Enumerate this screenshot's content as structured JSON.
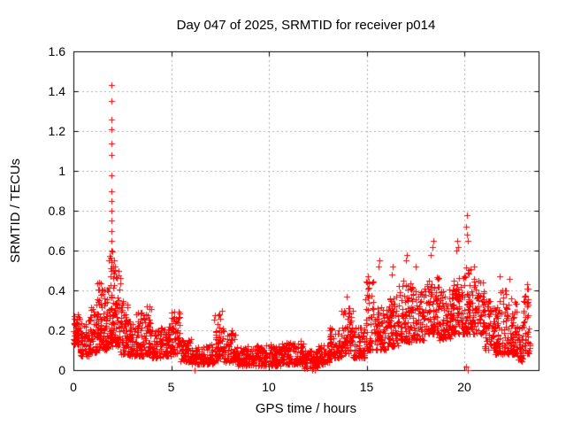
{
  "figure": {
    "background": "#ffffff",
    "border_color": "#000000"
  },
  "chart_data": {
    "type": "scatter",
    "title": "Day 047 of 2025, SRMTID for receiver p014",
    "xlabel": "GPS time / hours",
    "ylabel": "SRMTID / TECUs",
    "xlim": [
      0,
      23.8
    ],
    "ylim": [
      0,
      1.6
    ],
    "xtick_values": [
      0,
      5,
      10,
      15,
      20
    ],
    "xtick_labels": [
      "0",
      "5",
      "10",
      "15",
      "20"
    ],
    "ytick_values": [
      0,
      0.2,
      0.4,
      0.6,
      0.8,
      1.0,
      1.2,
      1.4,
      1.6
    ],
    "ytick_labels": [
      "0",
      "0.2",
      "0.4",
      "0.6",
      "0.8",
      "1",
      "1.2",
      "1.4",
      "1.6"
    ],
    "grid": true,
    "grid_style": "dashed",
    "grid_color": "#b0b0b0",
    "legend": "none",
    "marker": "plus",
    "marker_size": 7,
    "marker_color": "#ff0000",
    "series_name": "SRMTID",
    "seed": 47,
    "sample_step_hours": 0.008333,
    "band_segments_comment": "dense scatter band envelope: [t_start, t_end, value_min, value_max, n_points]",
    "band_segments": [
      [
        0.0,
        0.3,
        0.13,
        0.28,
        55
      ],
      [
        0.3,
        0.8,
        0.07,
        0.26,
        60
      ],
      [
        0.8,
        1.2,
        0.09,
        0.33,
        55
      ],
      [
        1.2,
        1.5,
        0.1,
        0.45,
        50
      ],
      [
        1.5,
        1.8,
        0.1,
        0.42,
        45
      ],
      [
        1.8,
        2.05,
        0.12,
        0.6,
        50
      ],
      [
        2.05,
        2.4,
        0.12,
        0.52,
        55
      ],
      [
        2.4,
        2.8,
        0.08,
        0.35,
        55
      ],
      [
        2.8,
        3.2,
        0.07,
        0.26,
        50
      ],
      [
        3.2,
        3.6,
        0.07,
        0.3,
        50
      ],
      [
        3.6,
        4.0,
        0.08,
        0.33,
        55
      ],
      [
        4.0,
        4.5,
        0.06,
        0.2,
        55
      ],
      [
        4.5,
        5.0,
        0.07,
        0.22,
        55
      ],
      [
        5.0,
        5.45,
        0.08,
        0.3,
        50
      ],
      [
        5.45,
        6.0,
        0.04,
        0.16,
        55
      ],
      [
        6.0,
        6.7,
        0.03,
        0.12,
        65
      ],
      [
        6.7,
        7.2,
        0.03,
        0.13,
        50
      ],
      [
        7.2,
        7.65,
        0.05,
        0.3,
        50
      ],
      [
        7.65,
        8.4,
        0.04,
        0.2,
        70
      ],
      [
        8.4,
        9.2,
        0.02,
        0.12,
        75
      ],
      [
        9.2,
        9.9,
        0.02,
        0.13,
        65
      ],
      [
        9.9,
        10.6,
        0.02,
        0.13,
        65
      ],
      [
        10.6,
        11.3,
        0.03,
        0.14,
        65
      ],
      [
        11.3,
        11.8,
        0.03,
        0.15,
        50
      ],
      [
        11.8,
        12.5,
        0.01,
        0.1,
        70
      ],
      [
        12.5,
        13.1,
        0.03,
        0.13,
        60
      ],
      [
        13.1,
        13.7,
        0.06,
        0.22,
        60
      ],
      [
        13.7,
        14.3,
        0.08,
        0.33,
        65
      ],
      [
        14.3,
        14.9,
        0.06,
        0.22,
        60
      ],
      [
        14.9,
        15.35,
        0.1,
        0.45,
        55
      ],
      [
        15.35,
        16.0,
        0.1,
        0.32,
        65
      ],
      [
        16.0,
        16.6,
        0.12,
        0.38,
        70
      ],
      [
        16.6,
        17.3,
        0.14,
        0.45,
        80
      ],
      [
        17.3,
        18.0,
        0.15,
        0.42,
        80
      ],
      [
        18.0,
        18.7,
        0.18,
        0.47,
        80
      ],
      [
        18.7,
        19.3,
        0.15,
        0.42,
        70
      ],
      [
        19.3,
        19.9,
        0.18,
        0.47,
        75
      ],
      [
        19.9,
        20.4,
        0.18,
        0.52,
        65
      ],
      [
        20.4,
        21.0,
        0.18,
        0.46,
        70
      ],
      [
        21.0,
        21.6,
        0.1,
        0.35,
        65
      ],
      [
        21.6,
        22.2,
        0.08,
        0.42,
        70
      ],
      [
        22.2,
        22.7,
        0.08,
        0.36,
        60
      ],
      [
        22.7,
        23.0,
        0.04,
        0.22,
        35
      ],
      [
        23.0,
        23.35,
        0.08,
        0.42,
        45
      ]
    ],
    "outliers_comment": "notable individual points [t, value]; spike column near t=1.93 reaches 1.43",
    "outliers": [
      [
        1.93,
        0.5
      ],
      [
        1.93,
        0.55
      ],
      [
        1.93,
        0.6
      ],
      [
        1.93,
        0.65
      ],
      [
        1.93,
        0.7
      ],
      [
        1.93,
        0.75
      ],
      [
        1.93,
        0.8
      ],
      [
        1.93,
        0.85
      ],
      [
        1.93,
        0.9
      ],
      [
        1.93,
        0.98
      ],
      [
        1.93,
        1.08
      ],
      [
        1.93,
        1.14
      ],
      [
        1.93,
        1.21
      ],
      [
        1.93,
        1.26
      ],
      [
        1.93,
        1.35
      ],
      [
        1.93,
        1.43
      ],
      [
        2.05,
        0.5
      ],
      [
        2.08,
        0.55
      ],
      [
        2.12,
        0.52
      ],
      [
        6.2,
        0.0
      ],
      [
        12.2,
        0.0
      ],
      [
        12.35,
        0.0
      ],
      [
        14.0,
        0.37
      ],
      [
        15.0,
        0.44
      ],
      [
        15.05,
        0.47
      ],
      [
        15.6,
        0.52
      ],
      [
        15.65,
        0.55
      ],
      [
        16.3,
        0.48
      ],
      [
        16.35,
        0.52
      ],
      [
        17.0,
        0.55
      ],
      [
        17.05,
        0.58
      ],
      [
        17.5,
        0.52
      ],
      [
        18.3,
        0.58
      ],
      [
        18.35,
        0.62
      ],
      [
        18.4,
        0.65
      ],
      [
        19.6,
        0.6
      ],
      [
        19.65,
        0.65
      ],
      [
        19.7,
        0.62
      ],
      [
        20.1,
        0.72
      ],
      [
        20.12,
        0.78
      ],
      [
        20.15,
        0.68
      ],
      [
        20.18,
        0.65
      ],
      [
        20.1,
        0.02
      ],
      [
        20.16,
        0.0
      ],
      [
        20.5,
        0.52
      ],
      [
        21.8,
        0.47
      ],
      [
        22.3,
        0.46
      ],
      [
        23.2,
        0.43
      ]
    ]
  }
}
